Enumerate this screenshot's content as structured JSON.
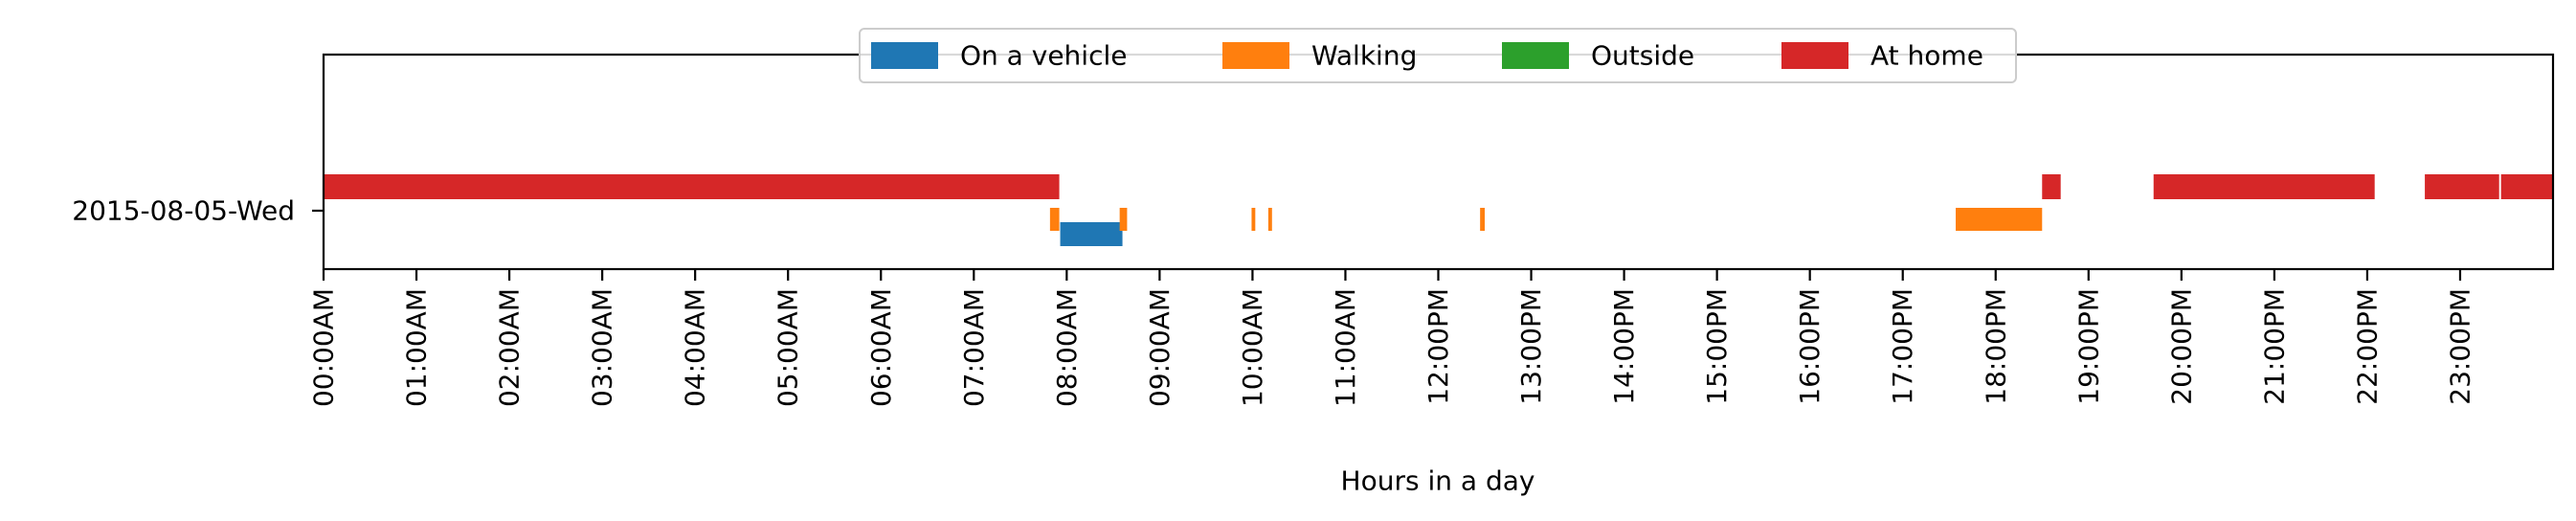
{
  "chart_data": {
    "type": "timeline",
    "xlabel": "Hours in a day",
    "ylabel": "",
    "title": "",
    "xlim": [
      0,
      24
    ],
    "row_label": "2015-08-05-Wed",
    "x_ticks": [
      {
        "hour": 0,
        "label": "00:00AM"
      },
      {
        "hour": 1,
        "label": "01:00AM"
      },
      {
        "hour": 2,
        "label": "02:00AM"
      },
      {
        "hour": 3,
        "label": "03:00AM"
      },
      {
        "hour": 4,
        "label": "04:00AM"
      },
      {
        "hour": 5,
        "label": "05:00AM"
      },
      {
        "hour": 6,
        "label": "06:00AM"
      },
      {
        "hour": 7,
        "label": "07:00AM"
      },
      {
        "hour": 8,
        "label": "08:00AM"
      },
      {
        "hour": 9,
        "label": "09:00AM"
      },
      {
        "hour": 10,
        "label": "10:00AM"
      },
      {
        "hour": 11,
        "label": "11:00AM"
      },
      {
        "hour": 12,
        "label": "12:00PM"
      },
      {
        "hour": 13,
        "label": "13:00PM"
      },
      {
        "hour": 14,
        "label": "14:00PM"
      },
      {
        "hour": 15,
        "label": "15:00PM"
      },
      {
        "hour": 16,
        "label": "16:00PM"
      },
      {
        "hour": 17,
        "label": "17:00PM"
      },
      {
        "hour": 18,
        "label": "18:00PM"
      },
      {
        "hour": 19,
        "label": "19:00PM"
      },
      {
        "hour": 20,
        "label": "20:00PM"
      },
      {
        "hour": 21,
        "label": "21:00PM"
      },
      {
        "hour": 22,
        "label": "22:00PM"
      },
      {
        "hour": 23,
        "label": "23:00PM"
      }
    ],
    "legend_position": "top-center",
    "series": [
      {
        "name": "On a vehicle",
        "color": "#1f77b4",
        "intervals": [
          [
            7.93,
            8.6
          ]
        ]
      },
      {
        "name": "Walking",
        "color": "#ff7f0e",
        "intervals": [
          [
            7.82,
            7.92
          ],
          [
            8.57,
            8.65
          ],
          [
            9.99,
            10.03
          ],
          [
            10.17,
            10.21
          ],
          [
            12.45,
            12.5
          ],
          [
            17.57,
            18.5
          ]
        ]
      },
      {
        "name": "Outside",
        "color": "#2ca02c",
        "intervals": []
      },
      {
        "name": "At home",
        "color": "#d62728",
        "intervals": [
          [
            0,
            7.92
          ],
          [
            18.5,
            18.7
          ],
          [
            19.7,
            22.08
          ],
          [
            22.62,
            23.42
          ],
          [
            23.44,
            24
          ]
        ]
      }
    ]
  }
}
